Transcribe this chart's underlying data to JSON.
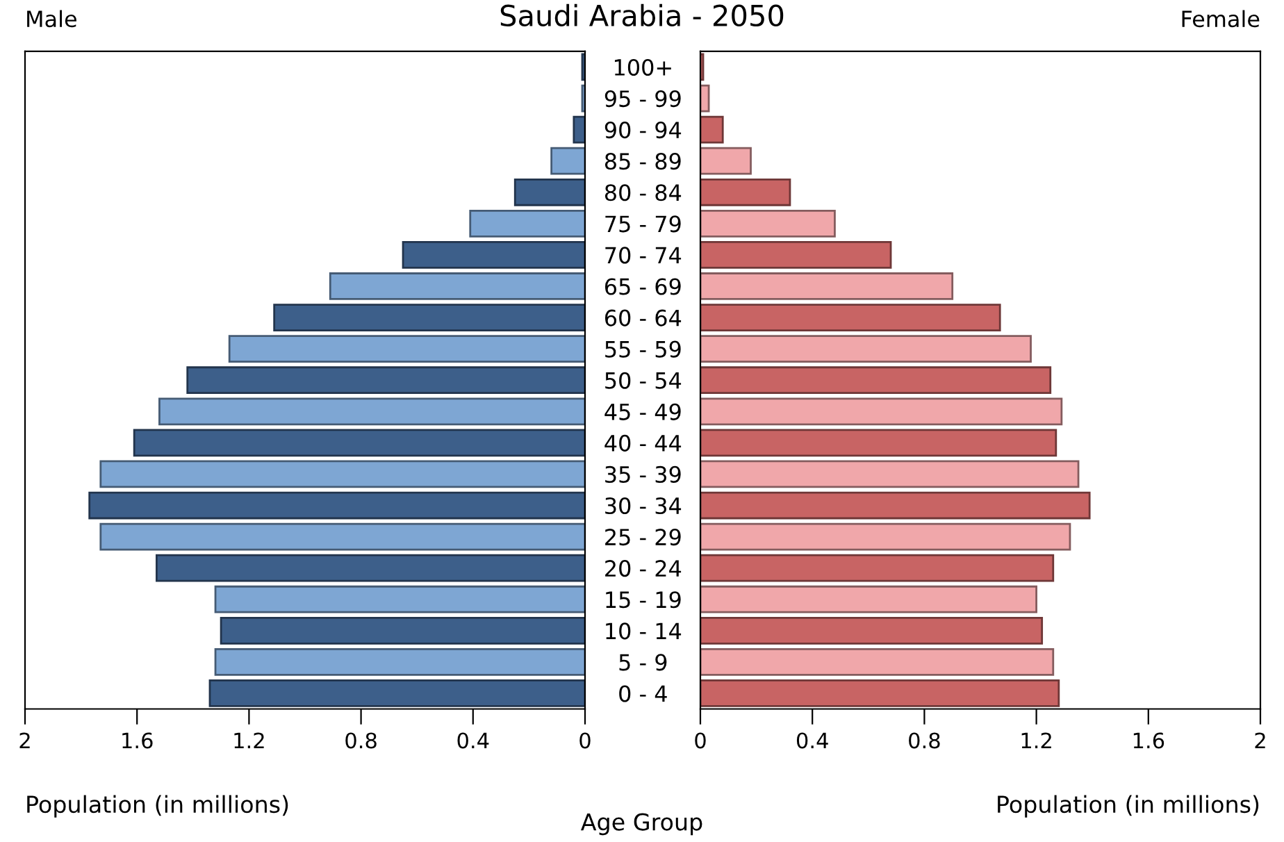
{
  "chart_data": [
    {
      "type": "bar",
      "orientation": "horizontal",
      "title": "Saudi Arabia - 2050",
      "annotations": [
        "Male"
      ],
      "xlabel": "Population (in millions)",
      "ylabel": "Age Group",
      "categories": [
        "100+",
        "95 - 99",
        "90 - 94",
        "85 - 89",
        "80 - 84",
        "75 - 79",
        "70 - 74",
        "65 - 69",
        "60 - 64",
        "55 - 59",
        "50 - 54",
        "45 - 49",
        "40 - 44",
        "35 - 39",
        "30 - 34",
        "25 - 29",
        "20 - 24",
        "15 - 19",
        "10 - 14",
        "5 - 9",
        "0 - 4"
      ],
      "values": [
        0.01,
        0.01,
        0.04,
        0.12,
        0.25,
        0.41,
        0.65,
        0.91,
        1.11,
        1.27,
        1.42,
        1.52,
        1.61,
        1.73,
        1.77,
        1.73,
        1.53,
        1.32,
        1.3,
        1.32,
        1.34
      ],
      "colors": [
        "#3d5f8a",
        "#7ea6d3",
        "#3d5f8a",
        "#7ea6d3",
        "#3d5f8a",
        "#7ea6d3",
        "#3d5f8a",
        "#7ea6d3",
        "#3d5f8a",
        "#7ea6d3",
        "#3d5f8a",
        "#7ea6d3",
        "#3d5f8a",
        "#7ea6d3",
        "#3d5f8a",
        "#7ea6d3",
        "#3d5f8a",
        "#7ea6d3",
        "#3d5f8a",
        "#7ea6d3",
        "#3d5f8a"
      ],
      "xlim": [
        2,
        0
      ],
      "xticks": [
        2,
        1.6,
        1.2,
        0.8,
        0.4,
        0
      ]
    },
    {
      "type": "bar",
      "orientation": "horizontal",
      "annotations": [
        "Female"
      ],
      "xlabel": "Population (in millions)",
      "categories": [
        null,
        null,
        null,
        null,
        null,
        null,
        null,
        null,
        null,
        null,
        null,
        null,
        null,
        null,
        null,
        null,
        null,
        null,
        null,
        null,
        null
      ],
      "values": [
        0.01,
        0.03,
        0.08,
        0.18,
        0.32,
        0.48,
        0.68,
        0.9,
        1.07,
        1.18,
        1.25,
        1.29,
        1.27,
        1.35,
        1.39,
        1.32,
        1.26,
        1.2,
        1.22,
        1.26,
        1.28
      ],
      "colors": [
        "#c86464",
        "#f0a7aa",
        "#c86464",
        "#f0a7aa",
        "#c86464",
        "#f0a7aa",
        "#c86464",
        "#f0a7aa",
        "#c86464",
        "#f0a7aa",
        "#c86464",
        "#f0a7aa",
        "#c86464",
        "#f0a7aa",
        "#c86464",
        "#f0a7aa",
        "#c86464",
        "#f0a7aa",
        "#c86464",
        "#f0a7aa",
        "#c86464"
      ],
      "xlim": [
        0,
        2
      ],
      "xticks": [
        0,
        0.4,
        0.8,
        1.2,
        1.6,
        2
      ]
    }
  ]
}
